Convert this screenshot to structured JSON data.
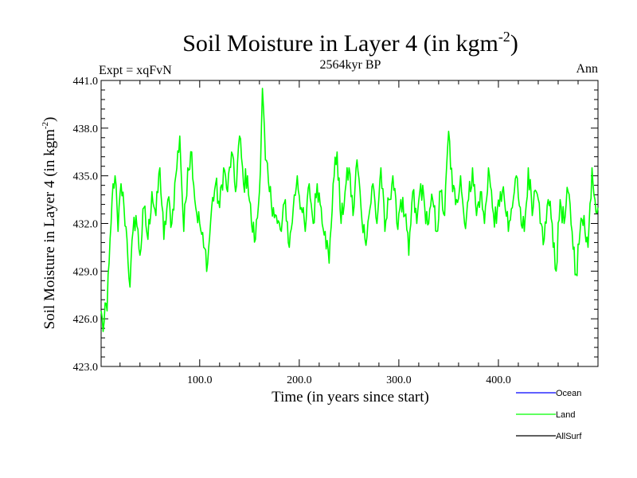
{
  "chart_data": {
    "type": "line",
    "title_main": "Soil Moisture in Layer 4 (in kgm",
    "title_sup": "-2",
    "title_close": ")",
    "subtitle": "2564kyr BP",
    "left_label": "Expt = xqFvN",
    "right_label": "Ann",
    "xlabel": "Time (in years since start)",
    "ylabel_main": "Soil Moisture in Layer 4 (in kgm",
    "ylabel_sup": "-2",
    "ylabel_close": ")",
    "xlim": [
      1,
      500
    ],
    "ylim": [
      423.0,
      441.0
    ],
    "x_ticks": [
      100,
      200,
      300,
      400
    ],
    "x_tick_labels": [
      "100.0",
      "200.0",
      "300.0",
      "400.0"
    ],
    "y_ticks": [
      423,
      426,
      429,
      432,
      435,
      438,
      441
    ],
    "y_tick_labels": [
      "423.0",
      "426.0",
      "429.0",
      "432.0",
      "435.0",
      "438.0",
      "441.0"
    ],
    "legend": [
      {
        "name": "Ocean",
        "color": "#0000ff"
      },
      {
        "name": "Land",
        "color": "#00ff00"
      },
      {
        "name": "AllSurf",
        "color": "#000000"
      }
    ],
    "series": [
      {
        "name": "Land",
        "color": "#00ff00",
        "keypoints": [
          [
            1,
            426.5
          ],
          [
            3,
            425.2
          ],
          [
            5,
            427.0
          ],
          [
            7,
            426.5
          ],
          [
            9,
            429.5
          ],
          [
            11,
            432.0
          ],
          [
            13,
            434.5
          ],
          [
            15,
            435.0
          ],
          [
            18,
            431.5
          ],
          [
            21,
            434.5
          ],
          [
            24,
            433.0
          ],
          [
            27,
            431.0
          ],
          [
            30,
            428.0
          ],
          [
            33,
            431.5
          ],
          [
            36,
            432.5
          ],
          [
            40,
            430.0
          ],
          [
            44,
            433.0
          ],
          [
            48,
            431.0
          ],
          [
            52,
            434.0
          ],
          [
            56,
            432.5
          ],
          [
            60,
            435.5
          ],
          [
            64,
            431.0
          ],
          [
            68,
            433.5
          ],
          [
            72,
            432.0
          ],
          [
            76,
            435.0
          ],
          [
            80,
            437.5
          ],
          [
            84,
            431.5
          ],
          [
            88,
            435.5
          ],
          [
            92,
            436.5
          ],
          [
            96,
            433.0
          ],
          [
            100,
            432.0
          ],
          [
            104,
            430.5
          ],
          [
            108,
            429.5
          ],
          [
            112,
            433.0
          ],
          [
            116,
            434.5
          ],
          [
            120,
            433.0
          ],
          [
            124,
            435.5
          ],
          [
            128,
            434.0
          ],
          [
            132,
            436.5
          ],
          [
            136,
            434.0
          ],
          [
            140,
            437.5
          ],
          [
            144,
            434.5
          ],
          [
            148,
            435.0
          ],
          [
            152,
            432.0
          ],
          [
            156,
            431.0
          ],
          [
            160,
            434.0
          ],
          [
            163,
            440.5
          ],
          [
            166,
            436.0
          ],
          [
            170,
            434.0
          ],
          [
            174,
            433.0
          ],
          [
            178,
            432.0
          ],
          [
            182,
            431.5
          ],
          [
            186,
            433.5
          ],
          [
            190,
            430.5
          ],
          [
            194,
            433.0
          ],
          [
            198,
            435.0
          ],
          [
            202,
            433.0
          ],
          [
            206,
            431.5
          ],
          [
            210,
            434.5
          ],
          [
            214,
            432.0
          ],
          [
            218,
            434.5
          ],
          [
            222,
            433.0
          ],
          [
            226,
            431.5
          ],
          [
            230,
            429.5
          ],
          [
            234,
            434.5
          ],
          [
            238,
            436.5
          ],
          [
            242,
            432.0
          ],
          [
            246,
            434.0
          ],
          [
            250,
            435.5
          ],
          [
            254,
            432.5
          ],
          [
            258,
            436.0
          ],
          [
            262,
            433.0
          ],
          [
            266,
            431.0
          ],
          [
            270,
            432.5
          ],
          [
            274,
            434.5
          ],
          [
            278,
            432.0
          ],
          [
            282,
            435.5
          ],
          [
            286,
            431.5
          ],
          [
            290,
            433.5
          ],
          [
            294,
            435.0
          ],
          [
            298,
            432.0
          ],
          [
            302,
            433.5
          ],
          [
            306,
            432.5
          ],
          [
            310,
            430.0
          ],
          [
            314,
            434.0
          ],
          [
            318,
            432.0
          ],
          [
            322,
            434.5
          ],
          [
            326,
            433.0
          ],
          [
            330,
            432.0
          ],
          [
            334,
            433.5
          ],
          [
            338,
            431.5
          ],
          [
            342,
            434.0
          ],
          [
            346,
            432.5
          ],
          [
            350,
            437.8
          ],
          [
            354,
            434.0
          ],
          [
            358,
            433.5
          ],
          [
            362,
            435.0
          ],
          [
            366,
            432.0
          ],
          [
            370,
            433.5
          ],
          [
            374,
            435.5
          ],
          [
            378,
            432.5
          ],
          [
            382,
            434.0
          ],
          [
            386,
            432.0
          ],
          [
            390,
            435.5
          ],
          [
            394,
            433.0
          ],
          [
            398,
            432.0
          ],
          [
            402,
            434.0
          ],
          [
            406,
            433.5
          ],
          [
            410,
            431.5
          ],
          [
            414,
            433.0
          ],
          [
            418,
            435.0
          ],
          [
            422,
            433.0
          ],
          [
            426,
            431.5
          ],
          [
            430,
            435.5
          ],
          [
            434,
            432.5
          ],
          [
            438,
            434.0
          ],
          [
            442,
            432.0
          ],
          [
            446,
            431.0
          ],
          [
            450,
            433.5
          ],
          [
            454,
            432.0
          ],
          [
            458,
            429.0
          ],
          [
            462,
            433.5
          ],
          [
            466,
            432.0
          ],
          [
            470,
            434.0
          ],
          [
            474,
            431.5
          ],
          [
            478,
            428.8
          ],
          [
            482,
            431.5
          ],
          [
            486,
            432.5
          ],
          [
            490,
            430.5
          ],
          [
            494,
            435.5
          ],
          [
            497,
            433.5
          ],
          [
            500,
            433.0
          ]
        ]
      }
    ]
  }
}
